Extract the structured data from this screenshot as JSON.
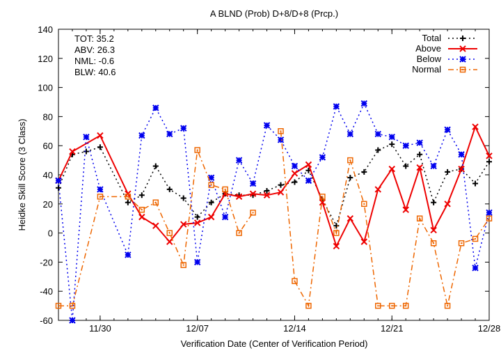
{
  "chart_data": {
    "type": "line",
    "title": "A BLND (Prob) D+8/D+8 (Prcp.)",
    "xlabel": "Verification Date (Center of Verification Period)",
    "ylabel": "Heidke Skill Score (3 Class)",
    "ylim": [
      -60,
      140
    ],
    "yticks": [
      -60,
      -40,
      -20,
      0,
      20,
      40,
      60,
      80,
      100,
      120,
      140
    ],
    "xlim": [
      "11/27",
      "12/28"
    ],
    "xticks": [
      "11/30",
      "12/07",
      "12/14",
      "12/21",
      "12/28"
    ],
    "grid": false,
    "legend_position": "top-right",
    "stats": [
      "TOT: 35.2",
      "ABV: 26.3",
      "NML: -0.6",
      "BLW: 40.6"
    ],
    "series": [
      {
        "name": "Total",
        "color": "#000000",
        "dash": "dot",
        "marker": "plus",
        "x": [
          "11/27",
          "11/28",
          "11/29",
          "11/30",
          "12/02",
          "12/03",
          "12/04",
          "12/05",
          "12/06",
          "12/07",
          "12/08",
          "12/09",
          "12/10",
          "12/11",
          "12/12",
          "12/13",
          "12/14",
          "12/15",
          "12/16",
          "12/17",
          "12/18",
          "12/19",
          "12/20",
          "12/21",
          "12/22",
          "12/23",
          "12/24",
          "12/25",
          "12/26",
          "12/27",
          "12/28"
        ],
        "values": [
          31,
          54,
          56,
          59,
          21,
          26,
          46,
          30,
          24,
          11,
          21,
          27,
          26,
          26,
          29,
          33,
          35,
          43,
          23,
          5,
          38,
          42,
          57,
          61,
          46,
          54,
          21,
          42,
          44,
          34,
          49
        ]
      },
      {
        "name": "Above",
        "color": "#ee0000",
        "dash": "solid",
        "marker": "cross",
        "x": [
          "11/27",
          "11/28",
          "11/30",
          "12/02",
          "12/03",
          "12/04",
          "12/05",
          "12/06",
          "12/07",
          "12/08",
          "12/09",
          "12/10",
          "12/11",
          "12/12",
          "12/13",
          "12/14",
          "12/15",
          "12/16",
          "12/17",
          "12/18",
          "12/19",
          "12/20",
          "12/21",
          "12/22",
          "12/23",
          "12/24",
          "12/25",
          "12/26",
          "12/27",
          "12/28"
        ],
        "values": [
          36,
          56,
          67,
          27,
          11,
          5,
          -6,
          6,
          7,
          11,
          27,
          25,
          27,
          26,
          28,
          41,
          47,
          21,
          -9,
          10,
          -6,
          30,
          44,
          16,
          45,
          2,
          20,
          44,
          73,
          53
        ]
      },
      {
        "name": "Below",
        "color": "#0000ee",
        "dash": "dot",
        "marker": "star",
        "x": [
          "11/27",
          "11/28",
          "11/29",
          "11/30",
          "12/02",
          "12/03",
          "12/04",
          "12/05",
          "12/06",
          "12/07",
          "12/08",
          "12/09",
          "12/10",
          "12/11",
          "12/12",
          "12/13",
          "12/14",
          "12/15",
          "12/16",
          "12/17",
          "12/18",
          "12/19",
          "12/20",
          "12/21",
          "12/22",
          "12/23",
          "12/24",
          "12/25",
          "12/26",
          "12/27",
          "12/28"
        ],
        "values": [
          36,
          -60,
          66,
          30,
          -15,
          67,
          86,
          68,
          72,
          -20,
          38,
          11,
          50,
          34,
          74,
          64,
          46,
          36,
          52,
          87,
          68,
          89,
          68,
          66,
          60,
          62,
          46,
          71,
          54,
          -24,
          14
        ]
      },
      {
        "name": "Normal",
        "color": "#ee6600",
        "dash": "dashdot",
        "marker": "square",
        "x": [
          "11/27",
          "11/28",
          "11/30",
          "12/02",
          "12/03",
          "12/04",
          "12/05",
          "12/06",
          "12/07",
          "12/08",
          "12/09",
          "12/10",
          "12/11",
          "12/12",
          "12/13",
          "12/14",
          "12/15",
          "12/16",
          "12/17",
          "12/18",
          "12/19",
          "12/20",
          "12/21",
          "12/22",
          "12/23",
          "12/24",
          "12/25",
          "12/26",
          "12/27",
          "12/28"
        ],
        "values": [
          -50,
          -50,
          25,
          25,
          16,
          21,
          0,
          -22,
          57,
          33,
          30,
          0,
          14,
          null,
          70,
          -33,
          -50,
          25,
          0,
          50,
          20,
          -50,
          -50,
          -50,
          10,
          -7,
          -50,
          -7,
          -4,
          10
        ]
      }
    ]
  }
}
